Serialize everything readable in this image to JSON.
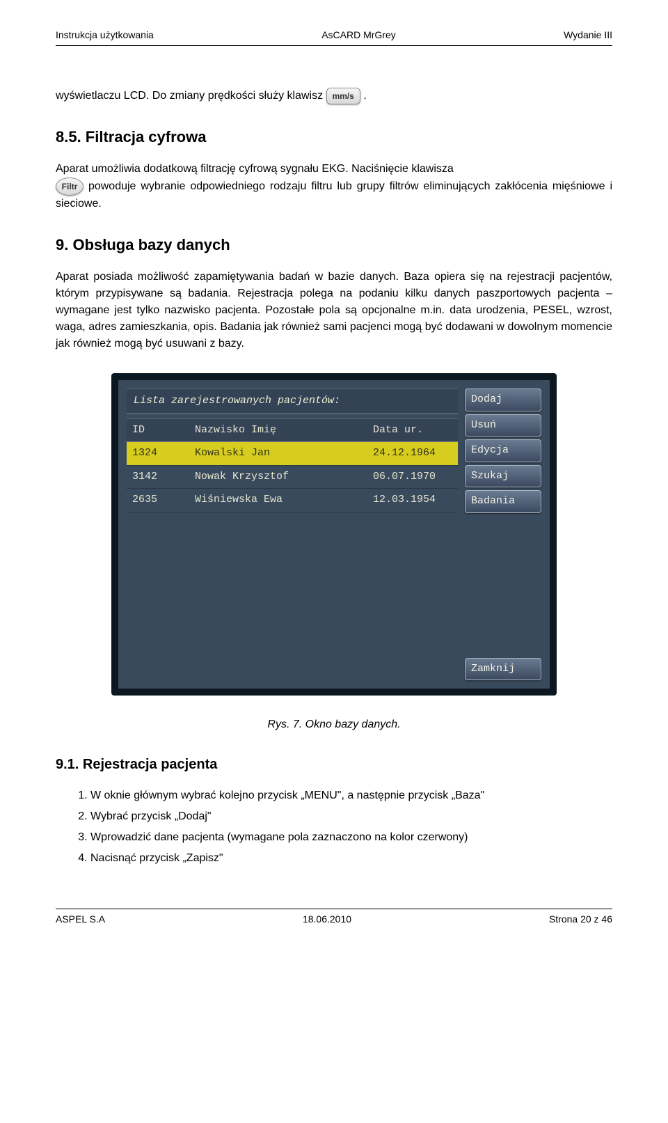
{
  "header": {
    "left": "Instrukcja użytkowania",
    "center": "AsCARD MrGrey",
    "right": "Wydanie III"
  },
  "intro": {
    "line1_a": "wyświetlaczu LCD. Do zmiany prędkości służy klawisz ",
    "line1_b": ".",
    "mmps_btn": "mm/s"
  },
  "sec85": {
    "title": "8.5.  Filtracja cyfrowa",
    "p1": "Aparat umożliwia dodatkową filtrację cyfrową sygnału EKG. Naciśnięcie klawisza",
    "filtr_btn": "Filtr",
    "p2": " powoduje wybranie odpowiedniego rodzaju filtru lub grupy filtrów eliminujących zakłócenia mięśniowe i sieciowe."
  },
  "sec9": {
    "title": "9. Obsługa bazy danych",
    "p": "Aparat posiada możliwość zapamiętywania badań w bazie danych. Baza opiera się na rejestracji pacjentów, którym przypisywane są badania. Rejestracja polega na podaniu kilku danych paszportowych pacjenta – wymagane jest tylko nazwisko pacjenta. Pozostałe pola są opcjonalne m.in. data urodzenia, PESEL, wzrost, waga, adres zamieszkania, opis. Badania jak również sami pacjenci mogą być dodawani w dowolnym momencie jak również mogą być usuwani z bazy."
  },
  "lcd": {
    "title": "Lista zarejestrowanych pacjentów:",
    "headers": {
      "id": "ID",
      "name": "Nazwisko Imię",
      "date": "Data ur."
    },
    "rows": [
      {
        "id": "1324",
        "name": "Kowalski Jan",
        "date": "24.12.1964",
        "selected": true
      },
      {
        "id": "3142",
        "name": "Nowak Krzysztof",
        "date": "06.07.1970",
        "selected": false
      },
      {
        "id": "2635",
        "name": "Wiśniewska Ewa",
        "date": "12.03.1954",
        "selected": false
      }
    ],
    "buttons": {
      "add": "Dodaj",
      "del": "Usuń",
      "edit": "Edycja",
      "find": "Szukaj",
      "study": "Badania",
      "close": "Zamknij"
    }
  },
  "fig_caption": "Rys. 7. Okno bazy danych.",
  "sec91": {
    "title": "9.1.  Rejestracja pacjenta",
    "items": [
      "W oknie głównym wybrać kolejno przycisk „MENU\", a następnie przycisk „Baza\"",
      "Wybrać przycisk „Dodaj\"",
      "Wprowadzić dane pacjenta (wymagane pola zaznaczono na kolor czerwony)",
      "Nacisnąć przycisk „Zapisz\""
    ]
  },
  "footer": {
    "left": "ASPEL S.A",
    "center": "18.06.2010",
    "right": "Strona 20 z 46"
  }
}
